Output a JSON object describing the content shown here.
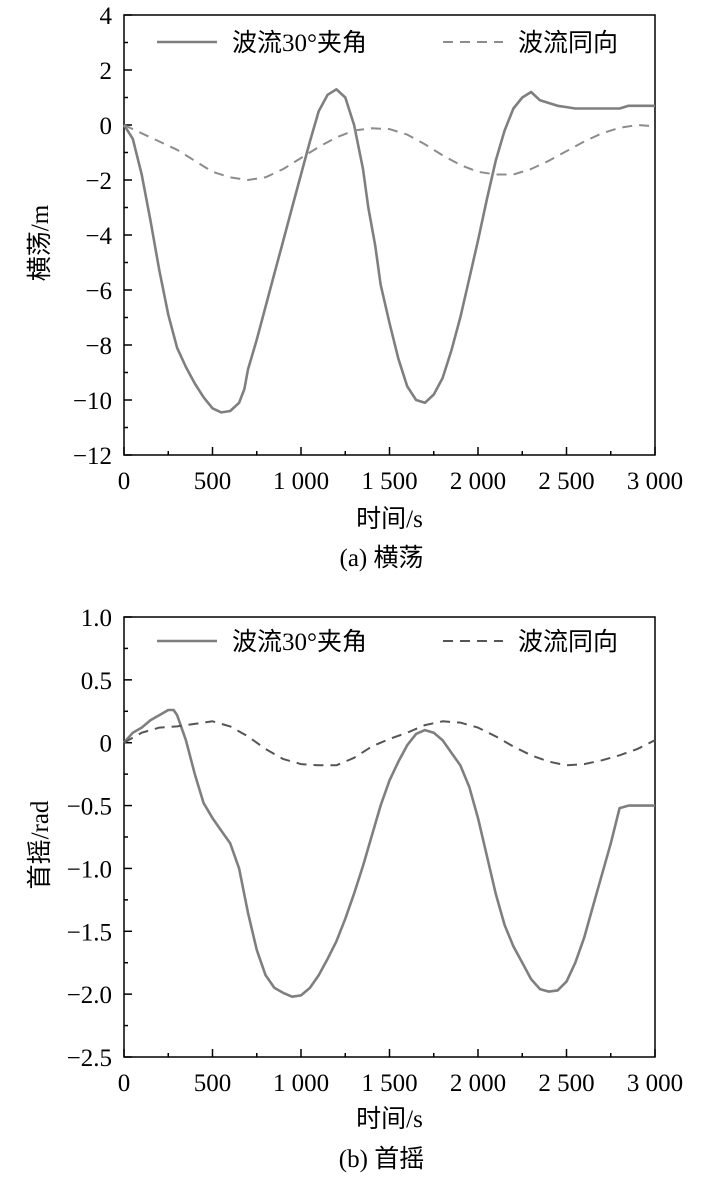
{
  "chart_data": [
    {
      "type": "line",
      "caption": "(a) 横荡",
      "xlabel": "时间/s",
      "ylabel": "横荡/m",
      "xlim": [
        0,
        3000
      ],
      "ylim": [
        -12,
        4
      ],
      "xticks": [
        0,
        500,
        1000,
        1500,
        2000,
        2500,
        3000
      ],
      "xtick_labels": [
        "0",
        "500",
        "1 000",
        "1 500",
        "2 000",
        "2 500",
        "3 000"
      ],
      "yticks": [
        -12,
        -10,
        -8,
        -6,
        -4,
        -2,
        0,
        2,
        4
      ],
      "ytick_labels": [
        "−12",
        "−10",
        "−8",
        "−6",
        "−4",
        "−2",
        "0",
        "2",
        "4"
      ],
      "legend_position": "top",
      "grid": false,
      "series": [
        {
          "name": "波流30°夹角",
          "style": "solid",
          "color": "#7f7f7f",
          "x": [
            0,
            50,
            100,
            150,
            200,
            250,
            300,
            350,
            400,
            450,
            500,
            550,
            600,
            650,
            680,
            700,
            750,
            800,
            850,
            900,
            950,
            1000,
            1050,
            1100,
            1150,
            1200,
            1250,
            1300,
            1350,
            1380,
            1420,
            1450,
            1500,
            1550,
            1600,
            1650,
            1700,
            1750,
            1800,
            1850,
            1900,
            1950,
            2000,
            2050,
            2100,
            2150,
            2200,
            2250,
            2300,
            2350,
            2400,
            2450,
            2500,
            2550,
            2600,
            2650,
            2700,
            2750,
            2800,
            2850,
            2880,
            2900,
            2950,
            3000
          ],
          "y": [
            0,
            -0.5,
            -1.8,
            -3.5,
            -5.3,
            -6.9,
            -8.1,
            -8.8,
            -9.4,
            -9.9,
            -10.3,
            -10.45,
            -10.4,
            -10.1,
            -9.6,
            -8.9,
            -7.8,
            -6.6,
            -5.4,
            -4.2,
            -3.0,
            -1.8,
            -0.6,
            0.5,
            1.1,
            1.3,
            1.0,
            0.0,
            -1.6,
            -3.0,
            -4.4,
            -5.8,
            -7.2,
            -8.5,
            -9.5,
            -10.0,
            -10.1,
            -9.8,
            -9.2,
            -8.2,
            -7.0,
            -5.6,
            -4.2,
            -2.7,
            -1.3,
            -0.2,
            0.6,
            1.0,
            1.2,
            0.9,
            0.8,
            0.7,
            0.65,
            0.6,
            0.6,
            0.6,
            0.6,
            0.6,
            0.6,
            0.7,
            0.7,
            0.7,
            0.7,
            0.7
          ]
        },
        {
          "name": "波流同向",
          "style": "dashed",
          "color": "#8c8c8c",
          "x": [
            0,
            100,
            200,
            300,
            400,
            500,
            600,
            700,
            800,
            900,
            1000,
            1100,
            1200,
            1300,
            1400,
            1500,
            1600,
            1700,
            1800,
            1900,
            2000,
            2100,
            2200,
            2300,
            2400,
            2500,
            2600,
            2700,
            2800,
            2900,
            3000
          ],
          "y": [
            0,
            -0.3,
            -0.6,
            -0.9,
            -1.3,
            -1.7,
            -1.9,
            -2.0,
            -1.9,
            -1.6,
            -1.2,
            -0.8,
            -0.45,
            -0.2,
            -0.12,
            -0.15,
            -0.35,
            -0.7,
            -1.1,
            -1.45,
            -1.7,
            -1.8,
            -1.8,
            -1.6,
            -1.3,
            -0.95,
            -0.6,
            -0.3,
            -0.1,
            0.0,
            -0.05
          ]
        }
      ]
    },
    {
      "type": "line",
      "caption": "(b) 首摇",
      "xlabel": "时间/s",
      "ylabel": "首摇/rad",
      "xlim": [
        0,
        3000
      ],
      "ylim": [
        -2.5,
        1.0
      ],
      "xticks": [
        0,
        500,
        1000,
        1500,
        2000,
        2500,
        3000
      ],
      "xtick_labels": [
        "0",
        "500",
        "1 000",
        "1 500",
        "2 000",
        "2 500",
        "3 000"
      ],
      "yticks": [
        -2.5,
        -2.0,
        -1.5,
        -1.0,
        -0.5,
        0,
        0.5,
        1.0
      ],
      "ytick_labels": [
        "−2.5",
        "−2.0",
        "−1.5",
        "−1.0",
        "−0.5",
        "0",
        "0.5",
        "1.0"
      ],
      "legend_position": "top",
      "grid": false,
      "series": [
        {
          "name": "波流30°夹角",
          "style": "solid",
          "color": "#7f7f7f",
          "x": [
            0,
            50,
            100,
            150,
            200,
            250,
            280,
            300,
            350,
            400,
            450,
            500,
            550,
            600,
            650,
            700,
            750,
            800,
            850,
            900,
            950,
            1000,
            1050,
            1100,
            1150,
            1200,
            1250,
            1300,
            1350,
            1400,
            1450,
            1500,
            1550,
            1600,
            1650,
            1700,
            1750,
            1800,
            1850,
            1900,
            1950,
            2000,
            2050,
            2100,
            2150,
            2200,
            2250,
            2300,
            2350,
            2400,
            2450,
            2500,
            2550,
            2600,
            2650,
            2700,
            2750,
            2800,
            2850,
            2900,
            2950,
            3000
          ],
          "y": [
            0,
            0.08,
            0.12,
            0.18,
            0.22,
            0.26,
            0.26,
            0.22,
            0.02,
            -0.25,
            -0.48,
            -0.6,
            -0.7,
            -0.8,
            -1.0,
            -1.35,
            -1.65,
            -1.85,
            -1.95,
            -1.99,
            -2.02,
            -2.01,
            -1.95,
            -1.85,
            -1.72,
            -1.58,
            -1.4,
            -1.2,
            -0.98,
            -0.74,
            -0.5,
            -0.3,
            -0.15,
            -0.02,
            0.07,
            0.1,
            0.08,
            0.02,
            -0.08,
            -0.18,
            -0.35,
            -0.6,
            -0.9,
            -1.2,
            -1.45,
            -1.62,
            -1.75,
            -1.88,
            -1.96,
            -1.98,
            -1.97,
            -1.9,
            -1.75,
            -1.55,
            -1.3,
            -1.05,
            -0.8,
            -0.52,
            -0.5,
            -0.5,
            -0.5,
            -0.5
          ]
        },
        {
          "name": "波流同向",
          "style": "dashed",
          "color": "#555555",
          "x": [
            0,
            100,
            200,
            300,
            400,
            500,
            600,
            700,
            800,
            900,
            1000,
            1100,
            1200,
            1300,
            1400,
            1500,
            1600,
            1700,
            1800,
            1900,
            2000,
            2100,
            2200,
            2300,
            2400,
            2500,
            2600,
            2700,
            2800,
            2900,
            3000
          ],
          "y": [
            0,
            0.08,
            0.12,
            0.13,
            0.15,
            0.17,
            0.13,
            0.05,
            -0.05,
            -0.13,
            -0.17,
            -0.18,
            -0.18,
            -0.12,
            -0.03,
            0.03,
            0.08,
            0.14,
            0.17,
            0.16,
            0.12,
            0.05,
            -0.03,
            -0.1,
            -0.15,
            -0.18,
            -0.17,
            -0.14,
            -0.1,
            -0.05,
            0.02
          ]
        }
      ]
    }
  ]
}
